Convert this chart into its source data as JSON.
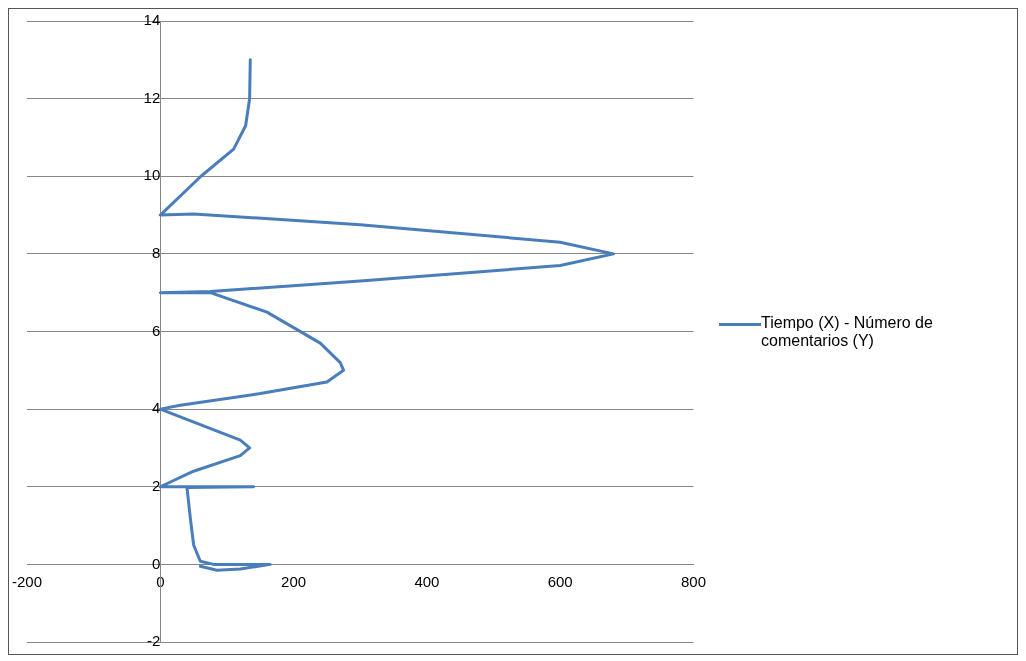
{
  "chart_data": {
    "type": "line",
    "xlim": [
      -200,
      800
    ],
    "ylim": [
      -2,
      14
    ],
    "xticks": [
      -200,
      0,
      200,
      400,
      600,
      800
    ],
    "yticks": [
      -2,
      0,
      2,
      4,
      6,
      8,
      10,
      12,
      14
    ],
    "grid": "y",
    "legend": "right",
    "marker": "none",
    "line_style": "solid",
    "series": [
      {
        "name": "Tiempo (X) - Número de comentarios (Y)",
        "color": "#4a7ebb",
        "x": [
          135,
          134,
          128,
          110,
          61,
          0,
          50,
          300,
          600,
          680,
          600,
          300,
          75,
          0,
          75,
          160,
          240,
          270,
          275,
          250,
          150,
          30,
          0,
          60,
          120,
          134,
          120,
          50,
          0,
          140,
          40,
          45,
          50,
          60,
          80,
          165,
          120,
          85,
          60
        ],
        "values": [
          13,
          12,
          11.3,
          10.7,
          10,
          9,
          9.03,
          8.75,
          8.3,
          8,
          7.7,
          7.3,
          7.03,
          7,
          7,
          6.5,
          5.7,
          5.2,
          5,
          4.7,
          4.4,
          4.1,
          4,
          3.6,
          3.2,
          3,
          2.8,
          2.4,
          2,
          2,
          1.98,
          1.2,
          0.5,
          0.08,
          0,
          0,
          -0.12,
          -0.15,
          -0.05
        ]
      }
    ]
  }
}
